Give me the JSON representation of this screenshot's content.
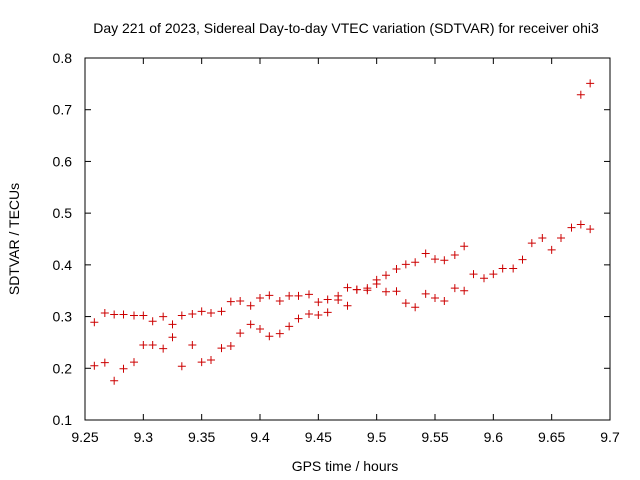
{
  "chart_data": {
    "type": "scatter",
    "title": "Day 221 of 2023, Sidereal Day-to-day VTEC variation (SDTVAR) for receiver ohi3",
    "xlabel": "GPS time / hours",
    "ylabel": "SDTVAR / TECUs",
    "xlim": [
      9.25,
      9.7
    ],
    "ylim": [
      0.1,
      0.8
    ],
    "xticks": [
      "9.25",
      "9.3",
      "9.35",
      "9.4",
      "9.45",
      "9.5",
      "9.55",
      "9.6",
      "9.65",
      "9.7"
    ],
    "yticks": [
      "0.1",
      "0.2",
      "0.3",
      "0.4",
      "0.5",
      "0.6",
      "0.7",
      "0.8"
    ],
    "grid": false,
    "marker": "+",
    "color": "#cc0000",
    "series": [
      {
        "name": "upper",
        "x": [
          9.258,
          9.267,
          9.275,
          9.283,
          9.292,
          9.3,
          9.308,
          9.317,
          9.325,
          9.333,
          9.342,
          9.35,
          9.358,
          9.367,
          9.375,
          9.383,
          9.392,
          9.4,
          9.408,
          9.417,
          9.425,
          9.433,
          9.442,
          9.45,
          9.458,
          9.467,
          9.475,
          9.483,
          9.492,
          9.5,
          9.508,
          9.517,
          9.525,
          9.533,
          9.542,
          9.55,
          9.558,
          9.567,
          9.575
        ],
        "y": [
          0.289,
          0.307,
          0.304,
          0.304,
          0.302,
          0.302,
          0.291,
          0.3,
          0.285,
          0.302,
          0.305,
          0.31,
          0.307,
          0.31,
          0.329,
          0.33,
          0.321,
          0.336,
          0.341,
          0.33,
          0.34,
          0.34,
          0.343,
          0.328,
          0.333,
          0.34,
          0.356,
          0.352,
          0.355,
          0.371,
          0.38,
          0.392,
          0.401,
          0.405,
          0.422,
          0.411,
          0.409,
          0.419,
          0.436
        ]
      },
      {
        "name": "lower",
        "x": [
          9.258,
          9.267,
          9.275,
          9.283,
          9.292,
          9.3,
          9.308,
          9.317,
          9.325,
          9.333,
          9.342,
          9.35,
          9.358,
          9.367,
          9.375,
          9.383,
          9.392,
          9.4,
          9.408,
          9.417,
          9.425,
          9.433,
          9.442,
          9.45,
          9.458,
          9.467,
          9.475,
          9.483,
          9.492,
          9.5,
          9.508,
          9.517,
          9.525,
          9.533,
          9.542,
          9.55,
          9.558,
          9.567,
          9.575,
          9.583,
          9.592,
          9.6,
          9.608,
          9.617,
          9.625,
          9.633,
          9.642,
          9.65,
          9.658,
          9.667,
          9.675,
          9.683
        ],
        "y": [
          0.205,
          0.211,
          0.176,
          0.199,
          0.212,
          0.245,
          0.245,
          0.238,
          0.26,
          0.204,
          0.245,
          0.212,
          0.216,
          0.239,
          0.243,
          0.268,
          0.285,
          0.276,
          0.262,
          0.267,
          0.281,
          0.296,
          0.305,
          0.303,
          0.308,
          0.332,
          0.321,
          0.352,
          0.351,
          0.363,
          0.348,
          0.349,
          0.326,
          0.318,
          0.344,
          0.336,
          0.33,
          0.355,
          0.35,
          0.382,
          0.374,
          0.382,
          0.393,
          0.393,
          0.41,
          0.442,
          0.452,
          0.429,
          0.452,
          0.472,
          0.478,
          0.469
        ]
      },
      {
        "name": "outliers",
        "x": [
          9.675,
          9.683
        ],
        "y": [
          0.729,
          0.751
        ]
      }
    ]
  }
}
